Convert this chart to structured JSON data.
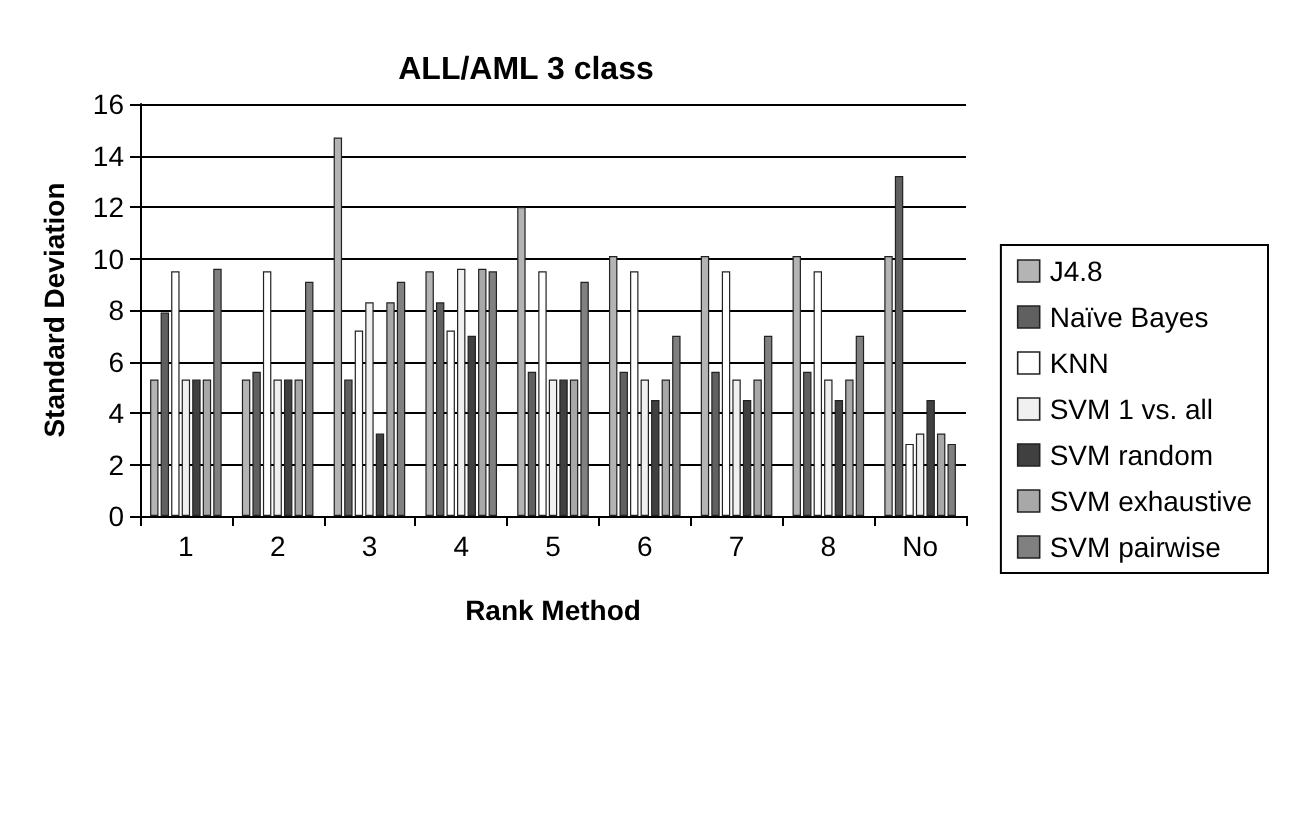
{
  "chart_data": {
    "type": "bar",
    "title": "ALL/AML 3 class",
    "xlabel": "Rank Method",
    "ylabel": "Standard Deviation",
    "categories": [
      "1",
      "2",
      "3",
      "4",
      "5",
      "6",
      "7",
      "8",
      "No"
    ],
    "series": [
      {
        "name": "J4.8",
        "color": "#b4b4b4",
        "values": [
          5.3,
          5.3,
          14.7,
          9.5,
          12.0,
          10.1,
          10.1,
          10.1,
          10.1
        ]
      },
      {
        "name": "Naïve Bayes",
        "color": "#606060",
        "values": [
          7.9,
          5.6,
          5.3,
          8.3,
          5.6,
          5.6,
          5.6,
          5.6,
          13.2
        ]
      },
      {
        "name": "KNN",
        "color": "#ffffff",
        "values": [
          9.5,
          9.5,
          7.2,
          7.2,
          9.5,
          9.5,
          9.5,
          9.5,
          2.8
        ]
      },
      {
        "name": "SVM 1 vs. all",
        "color": "#f0f0f0",
        "values": [
          5.3,
          5.3,
          8.3,
          9.6,
          5.3,
          5.3,
          5.3,
          5.3,
          3.2
        ]
      },
      {
        "name": "SVM random",
        "color": "#404040",
        "values": [
          5.3,
          5.3,
          3.2,
          7.0,
          5.3,
          4.5,
          4.5,
          4.5,
          4.5
        ]
      },
      {
        "name": "SVM exhaustive",
        "color": "#a8a8a8",
        "values": [
          5.3,
          5.3,
          8.3,
          9.6,
          5.3,
          5.3,
          5.3,
          5.3,
          3.2
        ]
      },
      {
        "name": "SVM pairwise",
        "color": "#808080",
        "values": [
          9.6,
          9.1,
          9.1,
          9.5,
          9.1,
          7.0,
          7.0,
          7.0,
          2.8
        ]
      }
    ],
    "ylim": [
      0,
      16
    ],
    "yticks": [
      0,
      2,
      4,
      6,
      8,
      10,
      12,
      14,
      16
    ],
    "grid": "y",
    "legend": "right"
  }
}
